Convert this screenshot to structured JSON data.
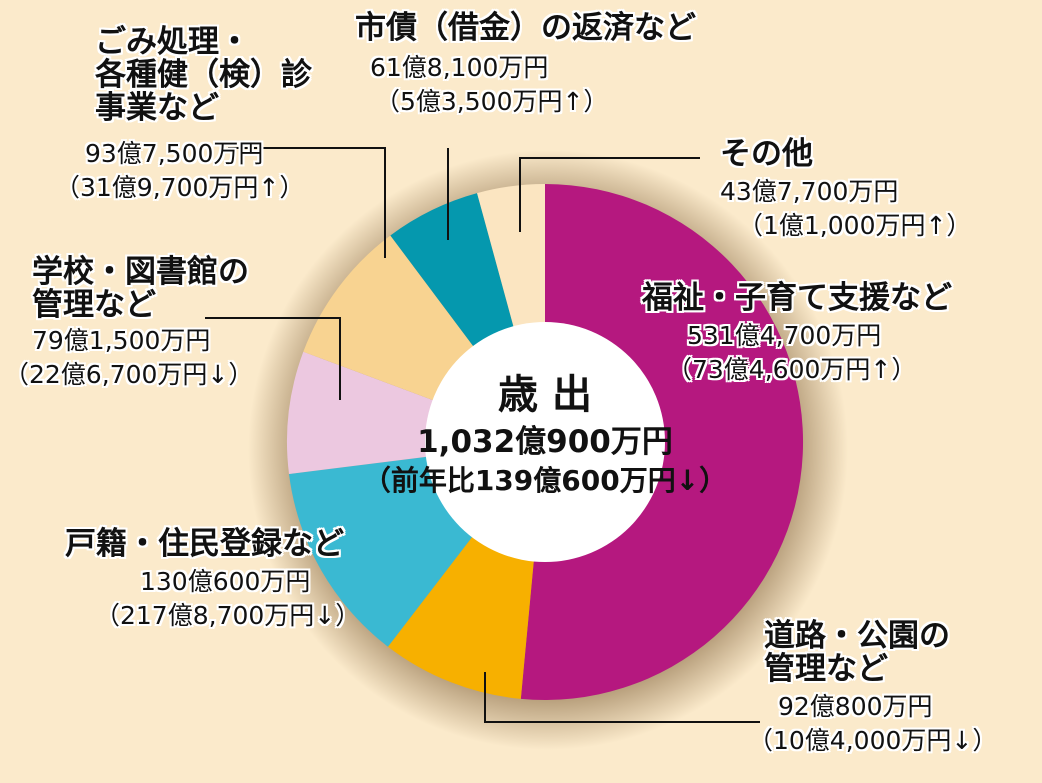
{
  "chart_data": {
    "type": "pie",
    "title": "歳 出",
    "unit": "億円",
    "total_label": "1,032億900万円",
    "total_change_label": "（前年比139億600万円↓）",
    "slices": [
      {
        "name": "福祉・子育て支援など",
        "value": 531.47,
        "amount": "531億4,700万円",
        "change": "（73億4,600万円↑）",
        "color": "#b5187f"
      },
      {
        "name": "道路・公園の管理など",
        "value": 92.08,
        "amount": "92億800万円",
        "change": "（10億4,000万円↓）",
        "color": "#f7b000"
      },
      {
        "name": "戸籍・住民登録など",
        "value": 130.06,
        "amount": "130億600万円",
        "change": "（217億8,700万円↓）",
        "color": "#3ab9d2"
      },
      {
        "name": "学校・図書館の管理など",
        "value": 79.15,
        "amount": "79億1,500万円",
        "change": "（22億6,700万円↓）",
        "color": "#ecc8e0"
      },
      {
        "name": "ごみ処理・各種健（検）診事業など",
        "value": 93.75,
        "amount": "93億7,500万円",
        "change": "（31億9,700万円↑）",
        "color": "#f8d391"
      },
      {
        "name": "市債（借金）の返済など",
        "value": 61.81,
        "amount": "61億8,100万円",
        "change": "（5億3,500万円↑）",
        "color": "#0598ae"
      },
      {
        "name": "その他",
        "value": 43.77,
        "amount": "43億7,700万円",
        "change": "（1億1,000万円↑）",
        "color": "#fbe5c1"
      }
    ]
  },
  "labels": {
    "welfare": {
      "l1": "福祉・子育て支援など"
    },
    "road": {
      "l1": "道路・公園の",
      "l2": "管理など"
    },
    "family": {
      "l1": "戸籍・住民登録など"
    },
    "school": {
      "l1": "学校・図書館の",
      "l2": "管理など"
    },
    "garbage": {
      "l1": "ごみ処理・",
      "l2": "各種健（検）診",
      "l3": "事業など"
    },
    "debt": {
      "l1": "市債（借金）の返済など"
    },
    "other": {
      "l1": "その他"
    }
  },
  "colors": {
    "background": "#fbeacb",
    "center": "#ffffff",
    "leader": "#111111"
  }
}
